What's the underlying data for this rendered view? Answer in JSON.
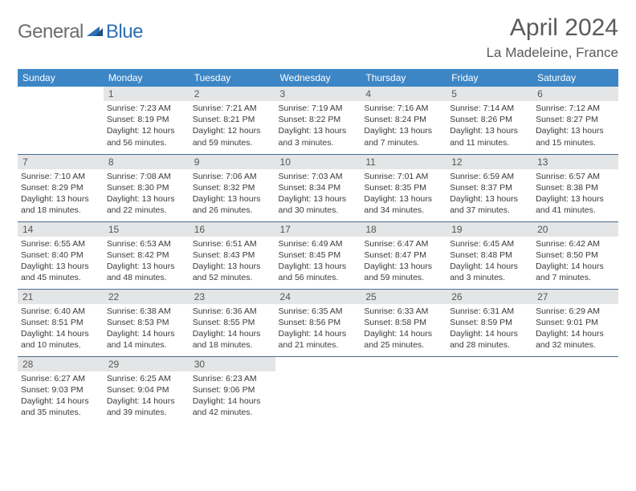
{
  "brand": {
    "part1": "General",
    "part2": "Blue"
  },
  "title": "April 2024",
  "location": "La Madeleine, France",
  "style": {
    "header_bg": "#3d86c6",
    "header_fg": "#ffffff",
    "daynum_bg": "#e4e5e6",
    "row_border": "#4a6c8f",
    "text_color": "#3a3a3a",
    "title_color": "#5a5a5a",
    "logo_gray": "#6d6d6d",
    "logo_blue": "#2f6fb3"
  },
  "weekdays": [
    "Sunday",
    "Monday",
    "Tuesday",
    "Wednesday",
    "Thursday",
    "Friday",
    "Saturday"
  ],
  "weeks": [
    [
      {
        "day": "",
        "sunrise": "",
        "sunset": "",
        "daylight_h": "",
        "daylight_m": ""
      },
      {
        "day": "1",
        "sunrise": "7:23 AM",
        "sunset": "8:19 PM",
        "daylight_h": "12",
        "daylight_m": "56"
      },
      {
        "day": "2",
        "sunrise": "7:21 AM",
        "sunset": "8:21 PM",
        "daylight_h": "12",
        "daylight_m": "59"
      },
      {
        "day": "3",
        "sunrise": "7:19 AM",
        "sunset": "8:22 PM",
        "daylight_h": "13",
        "daylight_m": "3"
      },
      {
        "day": "4",
        "sunrise": "7:16 AM",
        "sunset": "8:24 PM",
        "daylight_h": "13",
        "daylight_m": "7"
      },
      {
        "day": "5",
        "sunrise": "7:14 AM",
        "sunset": "8:26 PM",
        "daylight_h": "13",
        "daylight_m": "11"
      },
      {
        "day": "6",
        "sunrise": "7:12 AM",
        "sunset": "8:27 PM",
        "daylight_h": "13",
        "daylight_m": "15"
      }
    ],
    [
      {
        "day": "7",
        "sunrise": "7:10 AM",
        "sunset": "8:29 PM",
        "daylight_h": "13",
        "daylight_m": "18"
      },
      {
        "day": "8",
        "sunrise": "7:08 AM",
        "sunset": "8:30 PM",
        "daylight_h": "13",
        "daylight_m": "22"
      },
      {
        "day": "9",
        "sunrise": "7:06 AM",
        "sunset": "8:32 PM",
        "daylight_h": "13",
        "daylight_m": "26"
      },
      {
        "day": "10",
        "sunrise": "7:03 AM",
        "sunset": "8:34 PM",
        "daylight_h": "13",
        "daylight_m": "30"
      },
      {
        "day": "11",
        "sunrise": "7:01 AM",
        "sunset": "8:35 PM",
        "daylight_h": "13",
        "daylight_m": "34"
      },
      {
        "day": "12",
        "sunrise": "6:59 AM",
        "sunset": "8:37 PM",
        "daylight_h": "13",
        "daylight_m": "37"
      },
      {
        "day": "13",
        "sunrise": "6:57 AM",
        "sunset": "8:38 PM",
        "daylight_h": "13",
        "daylight_m": "41"
      }
    ],
    [
      {
        "day": "14",
        "sunrise": "6:55 AM",
        "sunset": "8:40 PM",
        "daylight_h": "13",
        "daylight_m": "45"
      },
      {
        "day": "15",
        "sunrise": "6:53 AM",
        "sunset": "8:42 PM",
        "daylight_h": "13",
        "daylight_m": "48"
      },
      {
        "day": "16",
        "sunrise": "6:51 AM",
        "sunset": "8:43 PM",
        "daylight_h": "13",
        "daylight_m": "52"
      },
      {
        "day": "17",
        "sunrise": "6:49 AM",
        "sunset": "8:45 PM",
        "daylight_h": "13",
        "daylight_m": "56"
      },
      {
        "day": "18",
        "sunrise": "6:47 AM",
        "sunset": "8:47 PM",
        "daylight_h": "13",
        "daylight_m": "59"
      },
      {
        "day": "19",
        "sunrise": "6:45 AM",
        "sunset": "8:48 PM",
        "daylight_h": "14",
        "daylight_m": "3"
      },
      {
        "day": "20",
        "sunrise": "6:42 AM",
        "sunset": "8:50 PM",
        "daylight_h": "14",
        "daylight_m": "7"
      }
    ],
    [
      {
        "day": "21",
        "sunrise": "6:40 AM",
        "sunset": "8:51 PM",
        "daylight_h": "14",
        "daylight_m": "10"
      },
      {
        "day": "22",
        "sunrise": "6:38 AM",
        "sunset": "8:53 PM",
        "daylight_h": "14",
        "daylight_m": "14"
      },
      {
        "day": "23",
        "sunrise": "6:36 AM",
        "sunset": "8:55 PM",
        "daylight_h": "14",
        "daylight_m": "18"
      },
      {
        "day": "24",
        "sunrise": "6:35 AM",
        "sunset": "8:56 PM",
        "daylight_h": "14",
        "daylight_m": "21"
      },
      {
        "day": "25",
        "sunrise": "6:33 AM",
        "sunset": "8:58 PM",
        "daylight_h": "14",
        "daylight_m": "25"
      },
      {
        "day": "26",
        "sunrise": "6:31 AM",
        "sunset": "8:59 PM",
        "daylight_h": "14",
        "daylight_m": "28"
      },
      {
        "day": "27",
        "sunrise": "6:29 AM",
        "sunset": "9:01 PM",
        "daylight_h": "14",
        "daylight_m": "32"
      }
    ],
    [
      {
        "day": "28",
        "sunrise": "6:27 AM",
        "sunset": "9:03 PM",
        "daylight_h": "14",
        "daylight_m": "35"
      },
      {
        "day": "29",
        "sunrise": "6:25 AM",
        "sunset": "9:04 PM",
        "daylight_h": "14",
        "daylight_m": "39"
      },
      {
        "day": "30",
        "sunrise": "6:23 AM",
        "sunset": "9:06 PM",
        "daylight_h": "14",
        "daylight_m": "42"
      },
      {
        "day": "",
        "sunrise": "",
        "sunset": "",
        "daylight_h": "",
        "daylight_m": ""
      },
      {
        "day": "",
        "sunrise": "",
        "sunset": "",
        "daylight_h": "",
        "daylight_m": ""
      },
      {
        "day": "",
        "sunrise": "",
        "sunset": "",
        "daylight_h": "",
        "daylight_m": ""
      },
      {
        "day": "",
        "sunrise": "",
        "sunset": "",
        "daylight_h": "",
        "daylight_m": ""
      }
    ]
  ]
}
